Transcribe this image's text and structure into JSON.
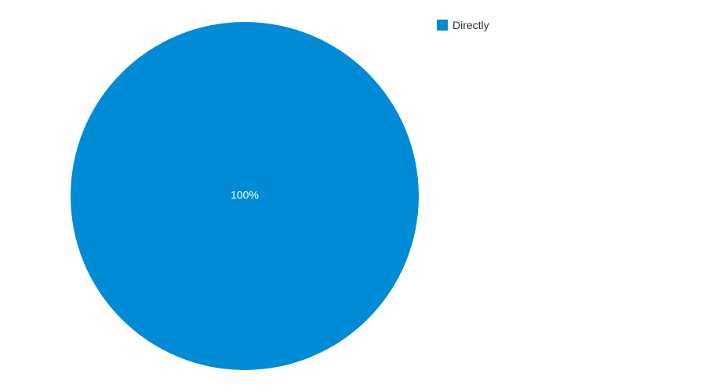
{
  "chart_data": {
    "type": "pie",
    "slices": [
      {
        "label": "Directly",
        "value": 100,
        "color": "#008bd6",
        "data_label": "100%"
      }
    ],
    "legend_position": "top-right",
    "data_label_color": "#ffffff"
  }
}
